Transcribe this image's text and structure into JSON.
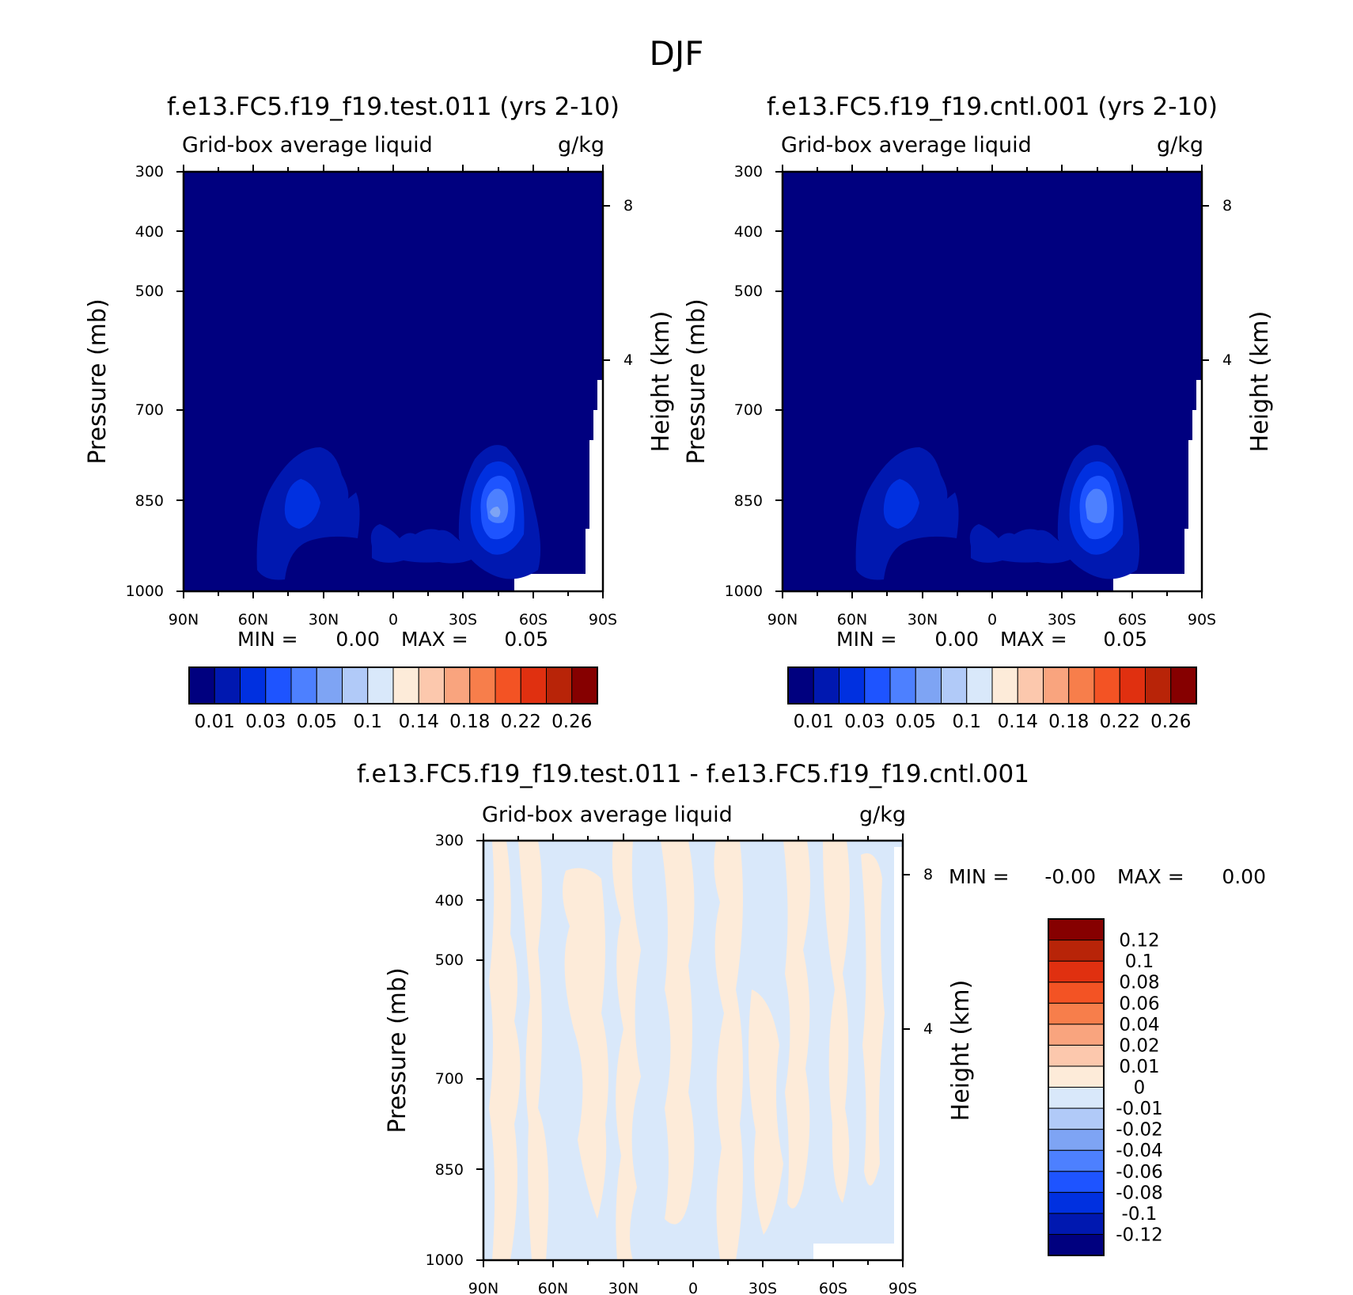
{
  "page_title": "DJF",
  "colors": {
    "axis": "#000000",
    "missing": "#ffffff"
  },
  "chart_data": [
    {
      "type": "heatmap",
      "title": "f.e13.FC5.f19_f19.test.011 (yrs 2-10)",
      "subtitle": "Grid-box average liquid",
      "units": "g/kg",
      "ylabel": "Pressure (mb)",
      "y2label": "Height (km)",
      "xticks": [
        "90N",
        "60N",
        "30N",
        "0",
        "30S",
        "60S",
        "90S"
      ],
      "x_range": [
        90,
        -90
      ],
      "yticks": [
        300,
        400,
        500,
        700,
        850,
        1000
      ],
      "y_range": [
        300,
        1000
      ],
      "y_scale": "log",
      "y2ticks": [
        8,
        4
      ],
      "min_label": "MIN =",
      "min_value": "0.00",
      "max_label": "MAX =",
      "max_value": "0.05",
      "colorbar_orientation": "horizontal",
      "colorbar_colors": [
        "#00007f",
        "#0018b0",
        "#0030e0",
        "#1e54ff",
        "#4d80ff",
        "#7ea4f4",
        "#b1caf8",
        "#d9e8fa",
        "#fdebd9",
        "#fcc8ad",
        "#f9a47e",
        "#f77e4b",
        "#f35324",
        "#e03010",
        "#b82408",
        "#860000"
      ],
      "colorbar_labels": [
        "0.01",
        "0.03",
        "0.05",
        "0.1",
        "0.14",
        "0.18",
        "0.22",
        "0.26"
      ],
      "levels_shown": [
        0.01,
        0.02,
        0.03,
        0.04,
        0.05
      ],
      "features": [
        {
          "center_lat": -45,
          "center_p": 860,
          "peak_level": 0.05
        },
        {
          "center_lat": 40,
          "center_p": 850,
          "peak_level": 0.03
        },
        {
          "center_lat": 5,
          "center_p": 940,
          "peak_level": 0.02
        }
      ]
    },
    {
      "type": "heatmap",
      "title": "f.e13.FC5.f19_f19.cntl.001 (yrs 2-10)",
      "subtitle": "Grid-box average liquid",
      "units": "g/kg",
      "ylabel": "Pressure (mb)",
      "y2label": "Height (km)",
      "xticks": [
        "90N",
        "60N",
        "30N",
        "0",
        "30S",
        "60S",
        "90S"
      ],
      "x_range": [
        90,
        -90
      ],
      "yticks": [
        300,
        400,
        500,
        700,
        850,
        1000
      ],
      "y_range": [
        300,
        1000
      ],
      "y_scale": "log",
      "y2ticks": [
        8,
        4
      ],
      "min_label": "MIN =",
      "min_value": "0.00",
      "max_label": "MAX =",
      "max_value": "0.05",
      "colorbar_orientation": "horizontal",
      "colorbar_colors": [
        "#00007f",
        "#0018b0",
        "#0030e0",
        "#1e54ff",
        "#4d80ff",
        "#7ea4f4",
        "#b1caf8",
        "#d9e8fa",
        "#fdebd9",
        "#fcc8ad",
        "#f9a47e",
        "#f77e4b",
        "#f35324",
        "#e03010",
        "#b82408",
        "#860000"
      ],
      "colorbar_labels": [
        "0.01",
        "0.03",
        "0.05",
        "0.1",
        "0.14",
        "0.18",
        "0.22",
        "0.26"
      ],
      "levels_shown": [
        0.01,
        0.02,
        0.03,
        0.04,
        0.05
      ],
      "features": [
        {
          "center_lat": -45,
          "center_p": 860,
          "peak_level": 0.05
        },
        {
          "center_lat": 40,
          "center_p": 850,
          "peak_level": 0.03
        },
        {
          "center_lat": 5,
          "center_p": 940,
          "peak_level": 0.02
        }
      ]
    },
    {
      "type": "heatmap",
      "title": "f.e13.FC5.f19_f19.test.011 - f.e13.FC5.f19_f19.cntl.001",
      "subtitle": "Grid-box average liquid",
      "units": "g/kg",
      "ylabel": "Pressure (mb)",
      "y2label": "Height (km)",
      "xticks": [
        "90N",
        "60N",
        "30N",
        "0",
        "30S",
        "60S",
        "90S"
      ],
      "x_range": [
        90,
        -90
      ],
      "yticks": [
        300,
        400,
        500,
        700,
        850,
        1000
      ],
      "y_range": [
        300,
        1000
      ],
      "y_scale": "log",
      "y2ticks": [
        8,
        4
      ],
      "min_label": "MIN =",
      "min_value": "-0.00",
      "max_label": "MAX =",
      "max_value": "0.00",
      "colorbar_orientation": "vertical",
      "colorbar_colors": [
        "#00007f",
        "#0018b0",
        "#0030e0",
        "#1e54ff",
        "#4d80ff",
        "#7ea4f4",
        "#b1caf8",
        "#d9e8fa",
        "#fdebd9",
        "#fcc8ad",
        "#f9a47e",
        "#f77e4b",
        "#f35324",
        "#e03010",
        "#b82408",
        "#860000"
      ],
      "colorbar_labels": [
        "0.12",
        "0.1",
        "0.08",
        "0.06",
        "0.04",
        "0.02",
        "0.01",
        "0",
        "-0.01",
        "-0.02",
        "-0.04",
        "-0.06",
        "-0.08",
        "-0.1",
        "-0.12"
      ],
      "levels_shown": [
        -0.01,
        0,
        0.01
      ],
      "pattern": "alternating positive (0 to 0.01) and negative (-0.01 to 0) vertical bands"
    }
  ]
}
